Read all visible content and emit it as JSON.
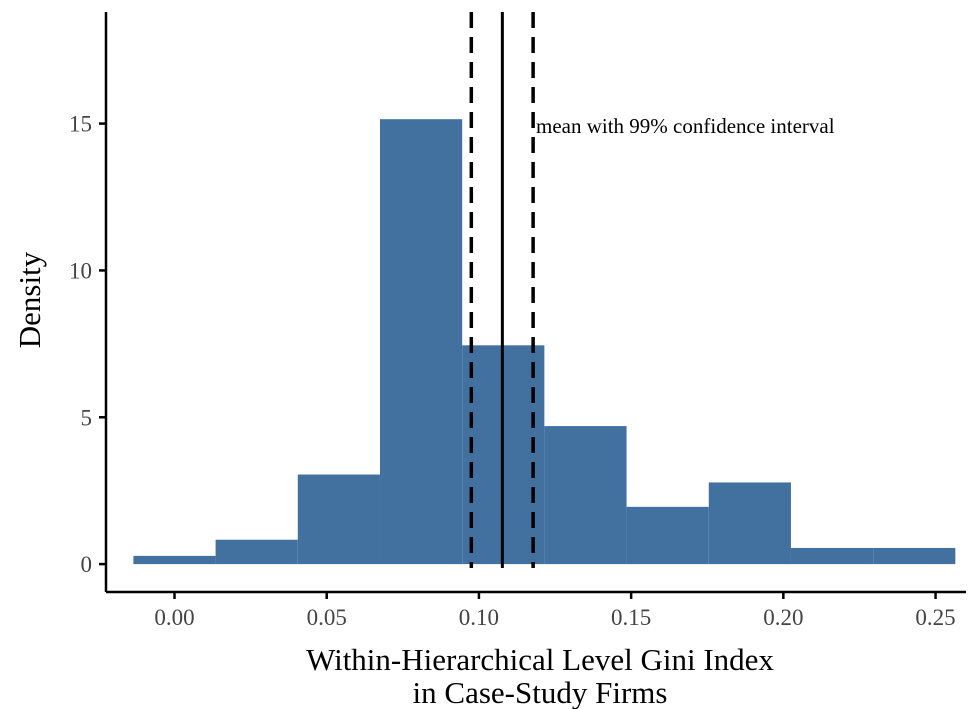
{
  "chart_data": {
    "type": "bar",
    "xlabel": "Within-Hierarchical Level Gini Index",
    "xlabel_line2": "in Case-Study Firms",
    "ylabel": "Density",
    "xlim": [
      -0.0225,
      0.26
    ],
    "ylim": [
      -0.95,
      18.8
    ],
    "xticks": [
      0.0,
      0.05,
      0.1,
      0.15,
      0.2,
      0.25
    ],
    "xtick_labels": [
      "0.00",
      "0.05",
      "0.10",
      "0.15",
      "0.20",
      "0.25"
    ],
    "yticks": [
      0,
      5,
      10,
      15
    ],
    "ytick_labels": [
      "0",
      "5",
      "10",
      "15"
    ],
    "bins": [
      {
        "x0": -0.0135,
        "x1": 0.0135,
        "density": 0.28
      },
      {
        "x0": 0.0135,
        "x1": 0.0405,
        "density": 0.83
      },
      {
        "x0": 0.0405,
        "x1": 0.0675,
        "density": 3.05
      },
      {
        "x0": 0.0675,
        "x1": 0.0945,
        "density": 15.15
      },
      {
        "x0": 0.0945,
        "x1": 0.1215,
        "density": 7.45
      },
      {
        "x0": 0.1215,
        "x1": 0.1485,
        "density": 4.7
      },
      {
        "x0": 0.1485,
        "x1": 0.1755,
        "density": 1.95
      },
      {
        "x0": 0.1755,
        "x1": 0.2025,
        "density": 2.78
      },
      {
        "x0": 0.2025,
        "x1": 0.2295,
        "density": 0.55
      },
      {
        "x0": 0.2295,
        "x1": 0.2565,
        "density": 0.55
      }
    ],
    "mean": 0.1077,
    "ci_lower": 0.0975,
    "ci_upper": 0.1178,
    "annotation": "mean with 99% confidence interval",
    "bar_color": "#4271a0",
    "grid": false,
    "legend": "none"
  }
}
